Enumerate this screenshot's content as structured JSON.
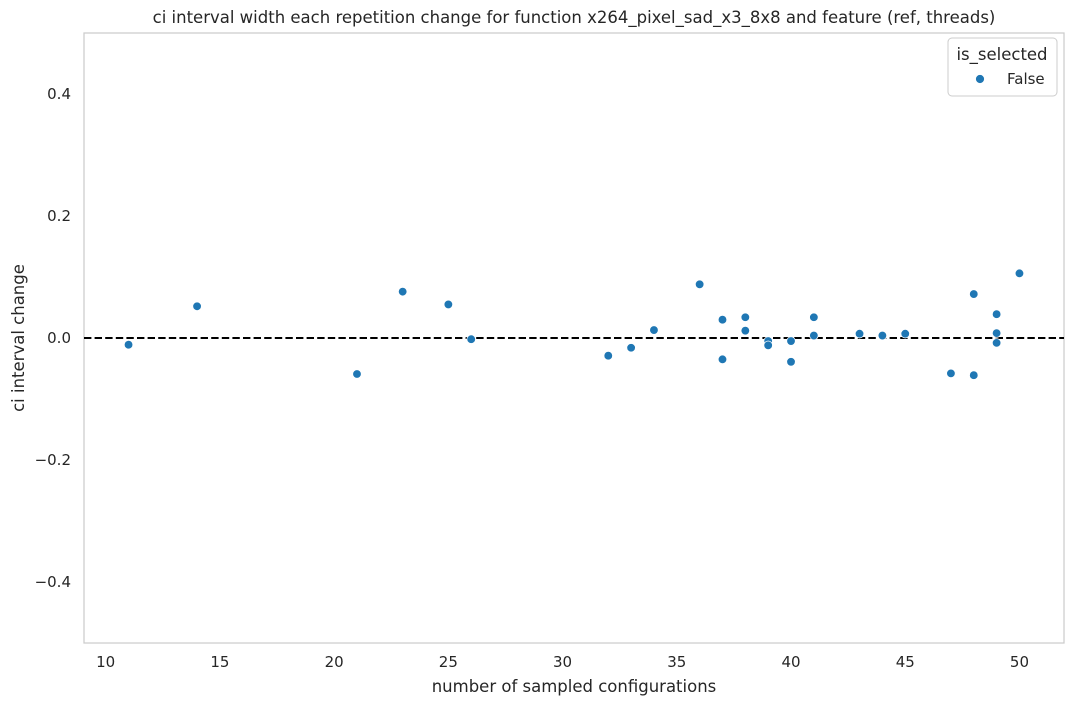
{
  "chart_data": {
    "type": "scatter",
    "title": "ci interval width each repetition change for function x264_pixel_sad_x3_8x8 and feature (ref, threads)",
    "xlabel": "number of sampled configurations",
    "ylabel": "ci interval change",
    "xlim": [
      9.05,
      51.95
    ],
    "ylim": [
      -0.5,
      0.5
    ],
    "xticks": [
      10,
      15,
      20,
      25,
      30,
      35,
      40,
      45,
      50
    ],
    "xtick_labels": [
      "10",
      "15",
      "20",
      "25",
      "30",
      "35",
      "40",
      "45",
      "50"
    ],
    "yticks": [
      0.4,
      0.2,
      0.0,
      -0.2,
      -0.4
    ],
    "ytick_labels": [
      "0.4",
      "0.2",
      "0.0",
      "−0.2",
      "−0.4"
    ],
    "grid": false,
    "reference_line": {
      "y": 0.0,
      "style": "dashed",
      "color": "#000000"
    },
    "legend": {
      "title": "is_selected",
      "position": "top-right",
      "entries": [
        {
          "label": "False",
          "color": "#1f77b4"
        }
      ]
    },
    "series": [
      {
        "name": "False",
        "color": "#1f77b4",
        "points": [
          {
            "x": 11,
            "y": -0.011
          },
          {
            "x": 14,
            "y": 0.052
          },
          {
            "x": 21,
            "y": -0.059
          },
          {
            "x": 23,
            "y": 0.076
          },
          {
            "x": 25,
            "y": 0.055
          },
          {
            "x": 26,
            "y": -0.002
          },
          {
            "x": 32,
            "y": -0.029
          },
          {
            "x": 33,
            "y": -0.016
          },
          {
            "x": 34,
            "y": 0.013
          },
          {
            "x": 36,
            "y": 0.088
          },
          {
            "x": 37,
            "y": 0.03
          },
          {
            "x": 37,
            "y": -0.035
          },
          {
            "x": 38,
            "y": 0.034
          },
          {
            "x": 38,
            "y": 0.012
          },
          {
            "x": 39,
            "y": -0.005
          },
          {
            "x": 39,
            "y": -0.012
          },
          {
            "x": 40,
            "y": -0.005
          },
          {
            "x": 40,
            "y": -0.039
          },
          {
            "x": 41,
            "y": 0.034
          },
          {
            "x": 41,
            "y": 0.004
          },
          {
            "x": 43,
            "y": 0.007
          },
          {
            "x": 44,
            "y": 0.004
          },
          {
            "x": 45,
            "y": 0.007
          },
          {
            "x": 47,
            "y": -0.058
          },
          {
            "x": 48,
            "y": 0.072
          },
          {
            "x": 48,
            "y": -0.061
          },
          {
            "x": 49,
            "y": 0.039
          },
          {
            "x": 49,
            "y": 0.008
          },
          {
            "x": 49,
            "y": -0.008
          },
          {
            "x": 50,
            "y": 0.106
          }
        ]
      }
    ]
  }
}
